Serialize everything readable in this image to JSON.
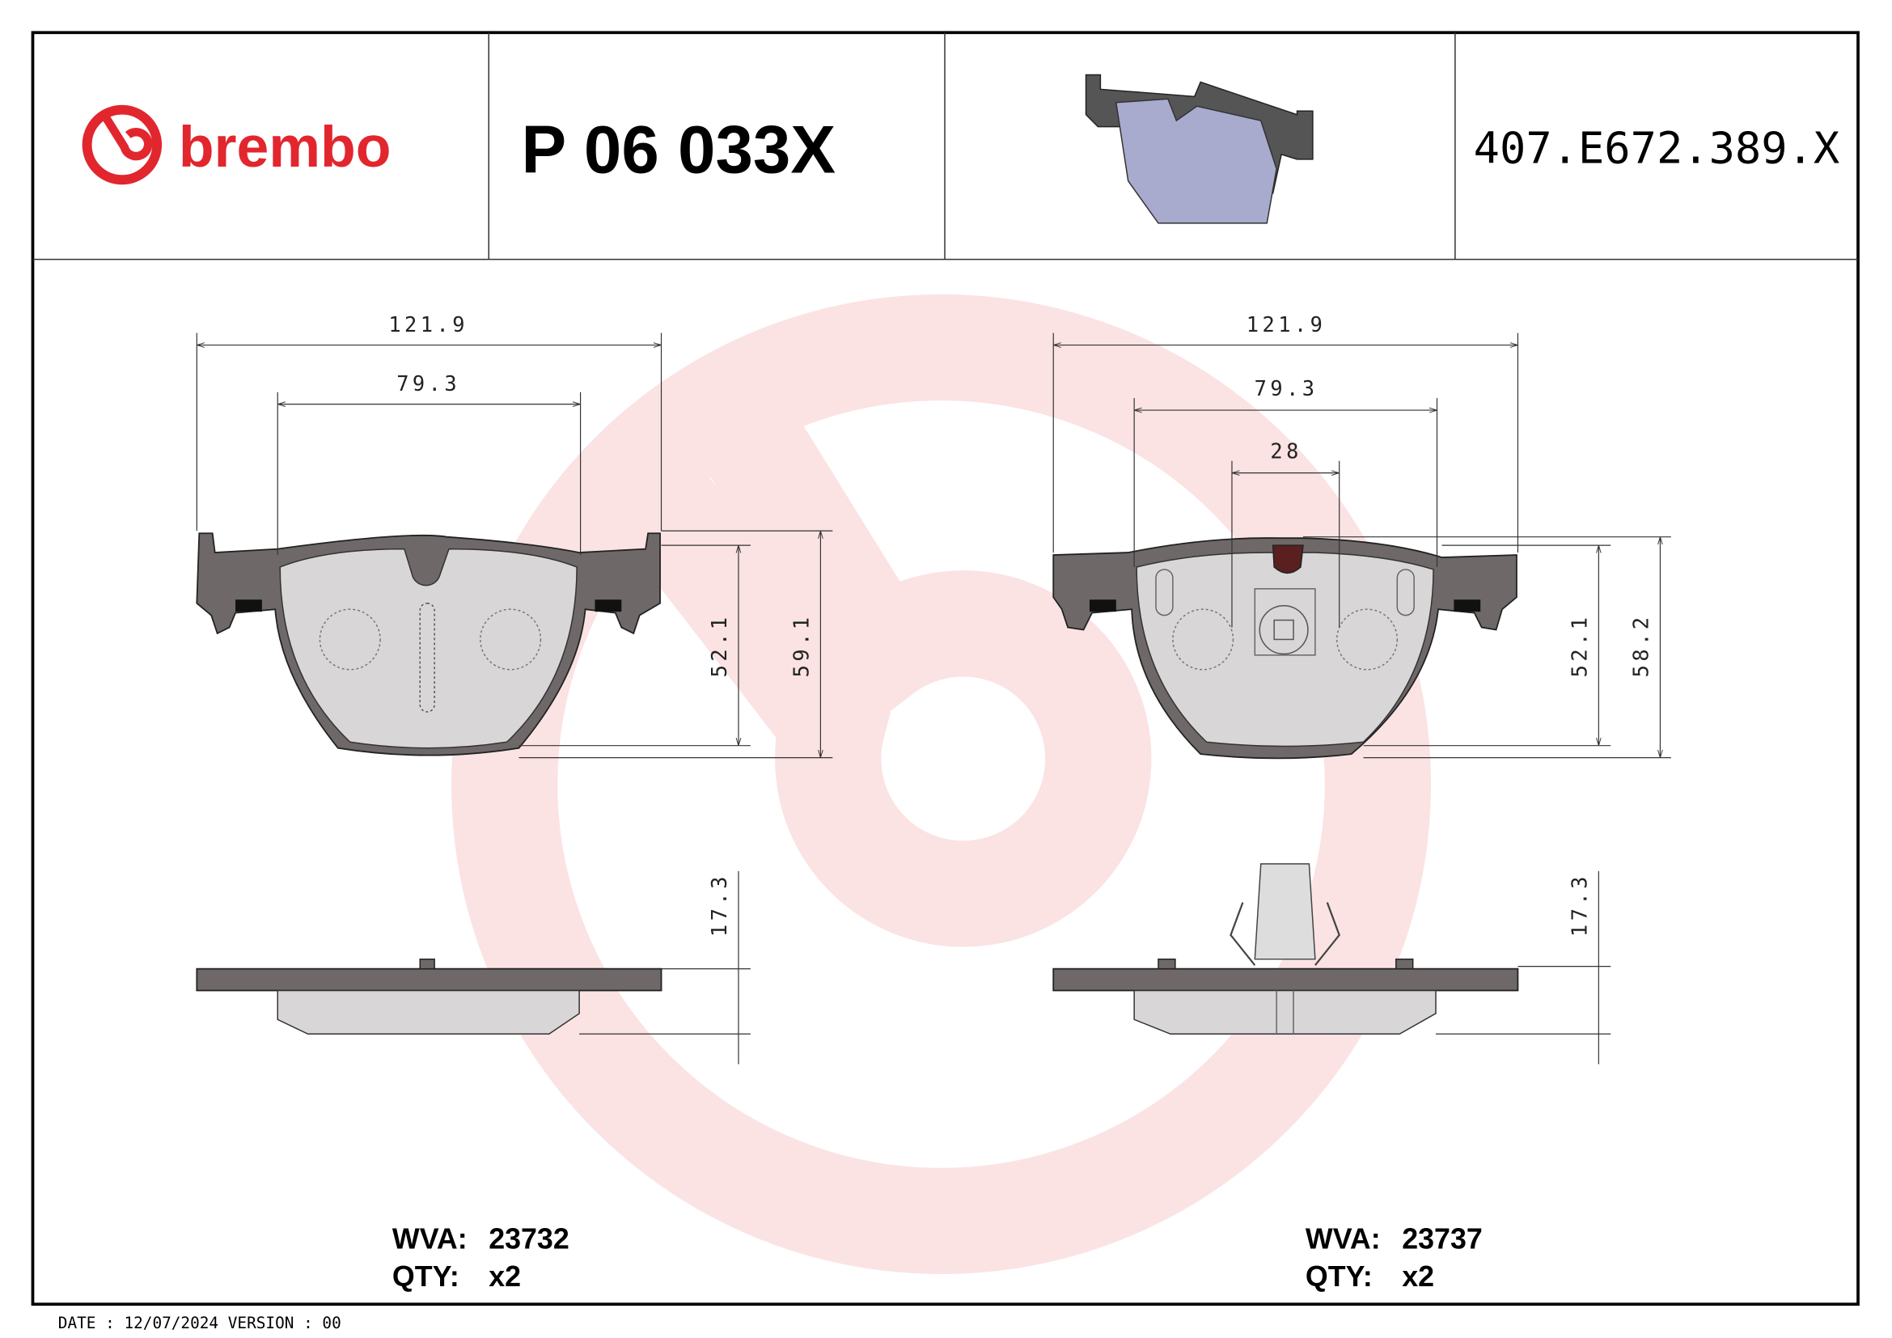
{
  "header": {
    "brand": "brembo",
    "part_number": "P 06 033X",
    "reference_code": "407.E672.389.X",
    "brand_color": "#e2262e"
  },
  "left_view": {
    "width_overall": "121.9",
    "width_friction": "79.3",
    "height_friction": "52.1",
    "height_overall": "59.1",
    "thickness": "17.3",
    "wva_label": "WVA:",
    "wva_value": "23732",
    "qty_label": "QTY:",
    "qty_value": "x2"
  },
  "right_view": {
    "width_overall": "121.9",
    "width_friction": "79.3",
    "sensor_width": "28",
    "height_friction": "52.1",
    "height_overall": "58.2",
    "thickness": "17.3",
    "wva_label": "WVA:",
    "wva_value": "23737",
    "qty_label": "QTY:",
    "qty_value": "x2"
  },
  "footer": {
    "date_text": "DATE : 12/07/2024 VERSION : 00"
  }
}
